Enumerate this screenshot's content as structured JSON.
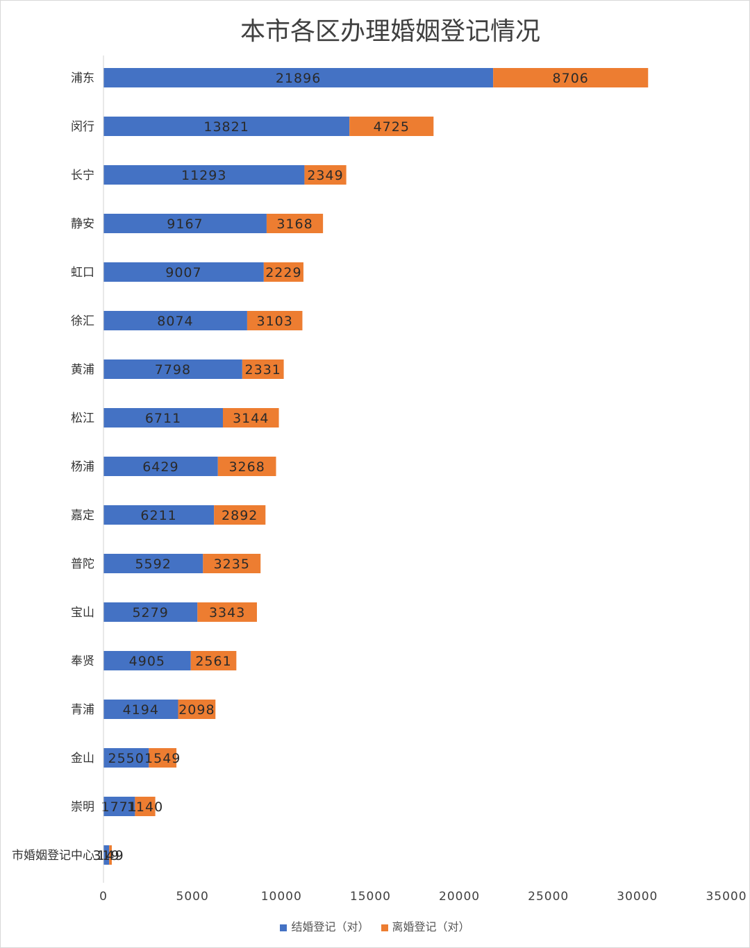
{
  "chart_data": {
    "type": "bar",
    "orientation": "horizontal",
    "stacked": true,
    "title": "本市各区办理婚姻登记情况",
    "categories": [
      "浦东",
      "闵行",
      "长宁",
      "静安",
      "虹口",
      "徐汇",
      "黄浦",
      "松江",
      "杨浦",
      "嘉定",
      "普陀",
      "宝山",
      "奉贤",
      "青浦",
      "金山",
      "崇明",
      "市婚姻登记中心"
    ],
    "series": [
      {
        "name": "结婚登记（对）",
        "color": "#4472c4",
        "values": [
          21896,
          13821,
          11293,
          9167,
          9007,
          8074,
          7798,
          6711,
          6429,
          6211,
          5592,
          5279,
          4905,
          4194,
          2550,
          1771,
          319
        ]
      },
      {
        "name": "离婚登记（对）",
        "color": "#ed7d31",
        "values": [
          8706,
          4725,
          2349,
          3168,
          2229,
          3103,
          2331,
          3144,
          3268,
          2892,
          3235,
          3343,
          2561,
          2098,
          1549,
          1140,
          149
        ]
      }
    ],
    "data_labels": [
      [
        "21896",
        "13821",
        "11293",
        "9167",
        "9007",
        "8074",
        "7798",
        "6711",
        "6429",
        "6211",
        "5592",
        "5279",
        "4905",
        "4194",
        "2550",
        "1771",
        "319"
      ],
      [
        "8706",
        "4725",
        "2349",
        "3168",
        "2229",
        "3103",
        "2331",
        "3144",
        "3268",
        "2892",
        "3235",
        "3343",
        "2561",
        "2098",
        "1549",
        "1140",
        "149"
      ]
    ],
    "xlim": [
      0,
      35000
    ],
    "xticks": [
      "0",
      "5000",
      "10000",
      "15000",
      "20000",
      "25000",
      "30000",
      "35000"
    ],
    "legend": [
      "结婚登记（对）",
      "离婚登记（对）"
    ],
    "legend_position": "bottom",
    "xlabel": "",
    "ylabel": ""
  }
}
